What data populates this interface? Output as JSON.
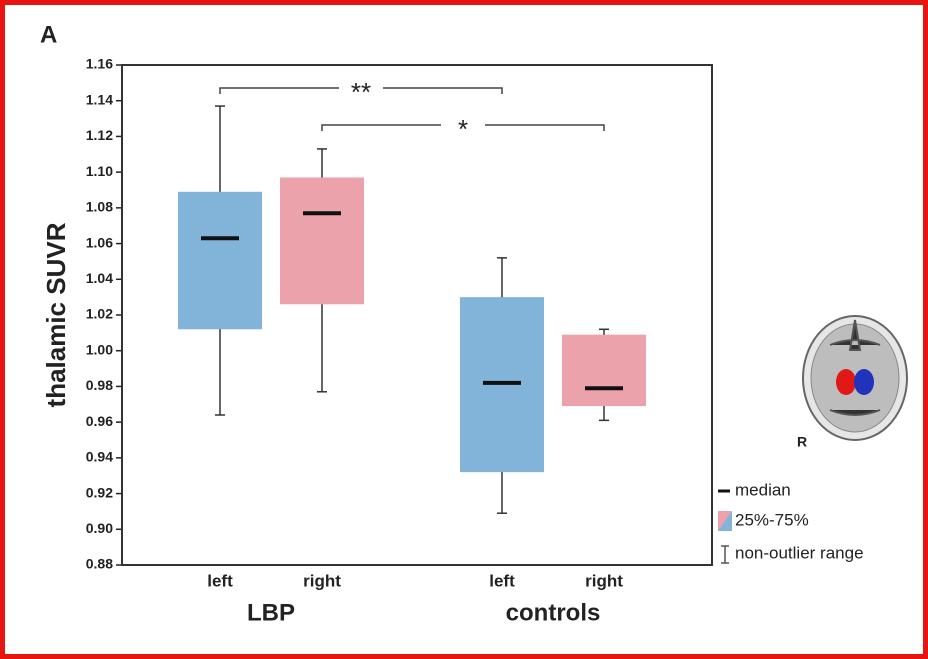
{
  "chart_data": {
    "type": "box",
    "panel_label": "A",
    "ylabel": "thalamic SUVR",
    "categories": [
      "left",
      "right",
      "left",
      "right"
    ],
    "groups": [
      "LBP",
      "controls"
    ],
    "boxes": [
      {
        "whisker_low": 0.964,
        "q1": 1.012,
        "median": 1.063,
        "q3": 1.089,
        "whisker_high": 1.137,
        "color": "#82b4da"
      },
      {
        "whisker_low": 0.977,
        "q1": 1.026,
        "median": 1.077,
        "q3": 1.097,
        "whisker_high": 1.113,
        "color": "#eca2aa"
      },
      {
        "whisker_low": 0.909,
        "q1": 0.932,
        "median": 0.982,
        "q3": 1.03,
        "whisker_high": 1.052,
        "color": "#82b4da"
      },
      {
        "whisker_low": 0.961,
        "q1": 0.969,
        "median": 0.979,
        "q3": 1.009,
        "whisker_high": 1.012,
        "color": "#eca2aa"
      }
    ],
    "ylim": [
      0.88,
      1.16
    ],
    "yticks": [
      {
        "value": 0.88,
        "label": "0.88"
      },
      {
        "value": 0.9,
        "label": "0.90"
      },
      {
        "value": 0.92,
        "label": "0.92"
      },
      {
        "value": 0.94,
        "label": "0.94"
      },
      {
        "value": 0.96,
        "label": "0.96"
      },
      {
        "value": 0.98,
        "label": "0.98"
      },
      {
        "value": 1.0,
        "label": "1.00"
      },
      {
        "value": 1.02,
        "label": "1.02"
      },
      {
        "value": 1.04,
        "label": "1.04"
      },
      {
        "value": 1.06,
        "label": "1.06"
      },
      {
        "value": 1.08,
        "label": "1.08"
      },
      {
        "value": 1.1,
        "label": "1.10"
      },
      {
        "value": 1.12,
        "label": "1.12"
      },
      {
        "value": 1.14,
        "label": "1.14"
      },
      {
        "value": 1.16,
        "label": "1.16"
      }
    ],
    "annotations": [
      {
        "text": "**",
        "spans": [
          0,
          2
        ]
      },
      {
        "text": "*",
        "spans": [
          1,
          3
        ]
      }
    ],
    "legend": [
      "median",
      "25%-75%",
      "non-outlier range"
    ],
    "image_label": "R"
  }
}
